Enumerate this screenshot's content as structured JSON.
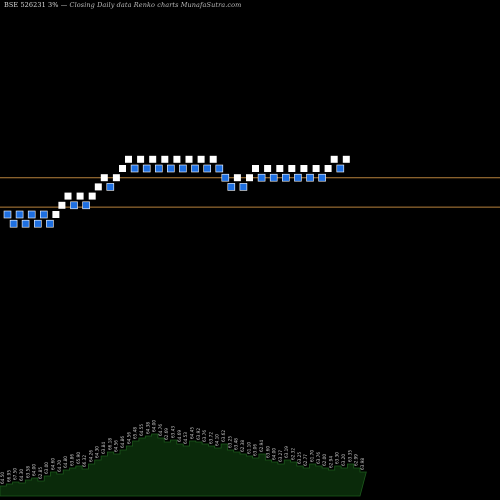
{
  "header": {
    "title_prefix": "BSE 526231 3%",
    "title_suffix": "Closing Daily data  Renko  charts MunafaSutra.com"
  },
  "colors": {
    "background": "#000000",
    "up_brick": "#ffffff",
    "down_brick": "#1e6fe0",
    "down_brick_outline": "#ffffff",
    "reference_line": "#b8823c",
    "volume_fill": "#0a2a0a",
    "volume_stroke": "#1c5a1c",
    "volume_label": "#cfcfcf"
  },
  "chart_data": {
    "type": "renko",
    "bricks": [
      {
        "dir": "down",
        "level": 0
      },
      {
        "dir": "down",
        "level": -1
      },
      {
        "dir": "down",
        "level": 0
      },
      {
        "dir": "down",
        "level": -1
      },
      {
        "dir": "down",
        "level": 0
      },
      {
        "dir": "down",
        "level": -1
      },
      {
        "dir": "down",
        "level": 0
      },
      {
        "dir": "down",
        "level": -1
      },
      {
        "dir": "up",
        "level": 0
      },
      {
        "dir": "up",
        "level": 1
      },
      {
        "dir": "up",
        "level": 2
      },
      {
        "dir": "down",
        "level": 1
      },
      {
        "dir": "up",
        "level": 2
      },
      {
        "dir": "down",
        "level": 1
      },
      {
        "dir": "up",
        "level": 2
      },
      {
        "dir": "up",
        "level": 3
      },
      {
        "dir": "up",
        "level": 4
      },
      {
        "dir": "down",
        "level": 3
      },
      {
        "dir": "up",
        "level": 4
      },
      {
        "dir": "up",
        "level": 5
      },
      {
        "dir": "up",
        "level": 6
      },
      {
        "dir": "down",
        "level": 5
      },
      {
        "dir": "up",
        "level": 6
      },
      {
        "dir": "down",
        "level": 5
      },
      {
        "dir": "up",
        "level": 6
      },
      {
        "dir": "down",
        "level": 5
      },
      {
        "dir": "up",
        "level": 6
      },
      {
        "dir": "down",
        "level": 5
      },
      {
        "dir": "up",
        "level": 6
      },
      {
        "dir": "down",
        "level": 5
      },
      {
        "dir": "up",
        "level": 6
      },
      {
        "dir": "down",
        "level": 5
      },
      {
        "dir": "up",
        "level": 6
      },
      {
        "dir": "down",
        "level": 5
      },
      {
        "dir": "up",
        "level": 6
      },
      {
        "dir": "down",
        "level": 5
      },
      {
        "dir": "down",
        "level": 4
      },
      {
        "dir": "down",
        "level": 3
      },
      {
        "dir": "up",
        "level": 4
      },
      {
        "dir": "down",
        "level": 3
      },
      {
        "dir": "up",
        "level": 4
      },
      {
        "dir": "up",
        "level": 5
      },
      {
        "dir": "down",
        "level": 4
      },
      {
        "dir": "up",
        "level": 5
      },
      {
        "dir": "down",
        "level": 4
      },
      {
        "dir": "up",
        "level": 5
      },
      {
        "dir": "down",
        "level": 4
      },
      {
        "dir": "up",
        "level": 5
      },
      {
        "dir": "down",
        "level": 4
      },
      {
        "dir": "up",
        "level": 5
      },
      {
        "dir": "down",
        "level": 4
      },
      {
        "dir": "up",
        "level": 5
      },
      {
        "dir": "down",
        "level": 4
      },
      {
        "dir": "up",
        "level": 5
      },
      {
        "dir": "up",
        "level": 6
      },
      {
        "dir": "down",
        "level": 5
      },
      {
        "dir": "up",
        "level": 6
      }
    ],
    "reference_lines": [
      {
        "level": 4.0
      },
      {
        "level": 0.8
      }
    ],
    "volume": {
      "values": [
        10,
        12,
        14,
        13,
        16,
        18,
        15,
        20,
        24,
        22,
        26,
        28,
        30,
        27,
        32,
        36,
        40,
        44,
        42,
        46,
        50,
        55,
        58,
        60,
        62,
        58,
        54,
        56,
        52,
        50,
        55,
        54,
        52,
        50,
        48,
        52,
        46,
        44,
        42,
        40,
        38,
        42,
        36,
        34,
        32,
        36,
        34,
        30,
        28,
        32,
        30,
        28,
        26,
        30,
        28,
        32,
        28,
        24
      ],
      "labels": [
        "64.50",
        "66.95",
        "67.50",
        "64.30",
        "63.58",
        "64.00",
        "62.85",
        "63.00",
        "64.60",
        "64.70",
        "64.80",
        "63.86",
        "65.90",
        "66.32",
        "64.26",
        "64.30",
        "63.84",
        "66.18",
        "64.56",
        "64.86",
        "64.56",
        "65.48",
        "64.55",
        "64.38",
        "64.00",
        "64.76",
        "62.69",
        "63.43",
        "64.69",
        "64.53",
        "64.45",
        "63.92",
        "63.76",
        "63.72",
        "64.10",
        "63.62",
        "63.25",
        "63.48",
        "62.38",
        "61.10",
        "63.06",
        "62.94",
        "63.60",
        "64.00",
        "63.27",
        "63.19",
        "62.32",
        "63.25",
        "62.77",
        "61.70",
        "63.76",
        "62.00",
        "62.94",
        "63.30",
        "63.20",
        "63.35",
        "62.99",
        "63.98"
      ]
    }
  }
}
